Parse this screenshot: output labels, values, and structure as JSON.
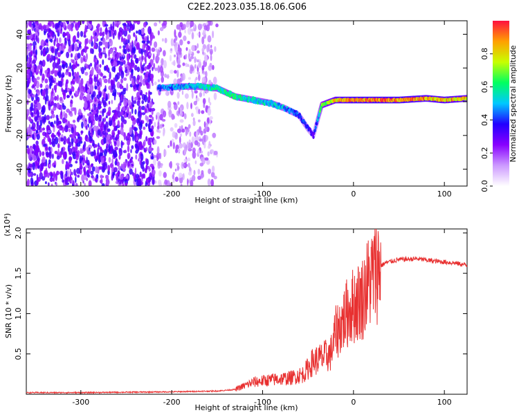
{
  "title": "C2E2.2023.035.18.06.G06",
  "chart_data": [
    {
      "type": "heatmap",
      "xlabel": "Height of straight line (km)",
      "ylabel": "Frequency (Hz)",
      "xlim": [
        -360,
        125
      ],
      "ylim": [
        -50,
        48
      ],
      "xticks": [
        -300,
        -200,
        -100,
        0,
        100
      ],
      "yticks": [
        -40,
        -20,
        0,
        20,
        40
      ],
      "colorbar": {
        "label": "Normalized spectral amplitude",
        "range": [
          0.0,
          1.0
        ],
        "ticks": [
          0.0,
          0.2,
          0.4,
          0.6,
          0.8
        ],
        "colors": [
          "#ffffff",
          "#cc99ff",
          "#8800ff",
          "#2200ff",
          "#00c8ff",
          "#00ff60",
          "#c8ff00",
          "#ffa000",
          "#ff1040"
        ]
      },
      "track": {
        "height_km": [
          -215,
          -190,
          -170,
          -150,
          -130,
          -110,
          -90,
          -75,
          -60,
          -50,
          -44,
          -35,
          -20,
          0,
          50,
          80,
          100,
          125
        ],
        "frequency_hz": [
          8,
          9,
          9,
          8,
          3,
          1,
          -1,
          -4,
          -8,
          -16,
          -20,
          -2,
          1,
          1,
          1,
          2,
          1,
          2
        ],
        "amplitude": [
          0.45,
          0.5,
          0.55,
          0.6,
          0.6,
          0.55,
          0.55,
          0.5,
          0.45,
          0.4,
          0.3,
          0.7,
          0.85,
          0.95,
          0.95,
          0.9,
          0.9,
          0.85
        ]
      }
    },
    {
      "type": "line",
      "xlabel": "Height of straight line (km)",
      "ylabel": "SNR (10 * v/v)",
      "y_multiplier": "(x10⁴)",
      "xlim": [
        -360,
        125
      ],
      "ylim": [
        0,
        2.05
      ],
      "xticks": [
        -300,
        -200,
        -100,
        0,
        100
      ],
      "yticks": [
        0.5,
        1.0,
        1.5,
        2.0
      ],
      "series": [
        {
          "name": "SNR",
          "color": "#e83030",
          "x": [
            -360,
            -300,
            -200,
            -150,
            -130,
            -110,
            -90,
            -70,
            -55,
            -45,
            -35,
            -25,
            -20,
            -12,
            -5,
            5,
            10,
            15,
            25,
            35,
            50,
            70,
            90,
            110,
            125
          ],
          "y": [
            0.02,
            0.02,
            0.03,
            0.04,
            0.06,
            0.15,
            0.18,
            0.2,
            0.25,
            0.4,
            0.45,
            0.5,
            0.75,
            0.9,
            1.05,
            1.15,
            1.2,
            1.35,
            1.55,
            1.63,
            1.67,
            1.68,
            1.65,
            1.63,
            1.6
          ]
        }
      ]
    }
  ]
}
